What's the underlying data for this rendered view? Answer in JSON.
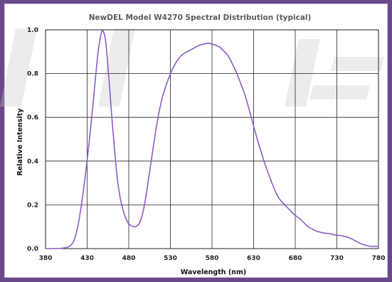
{
  "chart_data": {
    "type": "line",
    "title": "NewDEL Model W4270 Spectral Distribution (typical)",
    "xlabel": "Wavelength (nm)",
    "ylabel": "Relative Intensity",
    "xlim": [
      380,
      780
    ],
    "ylim": [
      0,
      1.0
    ],
    "grid": true,
    "x_ticks": [
      "380",
      "430",
      "480",
      "530",
      "580",
      "630",
      "680",
      "730",
      "780"
    ],
    "y_ticks": [
      "0.0",
      "0.2",
      "0.4",
      "0.6",
      "0.8",
      "1.0"
    ],
    "series": [
      {
        "color": "#8a5cc8",
        "x": [
          380,
          400,
          410,
          415,
          420,
          425,
          430,
          435,
          440,
          443,
          446,
          448,
          450,
          452,
          454,
          457,
          460,
          463,
          466,
          470,
          475,
          480,
          485,
          490,
          495,
          500,
          505,
          510,
          515,
          520,
          525,
          530,
          535,
          540,
          545,
          550,
          555,
          560,
          565,
          570,
          575,
          580,
          585,
          590,
          595,
          600,
          605,
          610,
          615,
          620,
          625,
          630,
          635,
          640,
          645,
          650,
          655,
          660,
          665,
          670,
          675,
          680,
          685,
          690,
          695,
          700,
          705,
          710,
          715,
          720,
          725,
          730,
          735,
          740,
          745,
          750,
          755,
          760,
          765,
          770,
          775,
          780
        ],
        "y": [
          0.0,
          0.0,
          0.01,
          0.04,
          0.12,
          0.25,
          0.4,
          0.58,
          0.78,
          0.9,
          0.97,
          1.0,
          0.99,
          0.96,
          0.88,
          0.74,
          0.58,
          0.45,
          0.32,
          0.22,
          0.15,
          0.11,
          0.1,
          0.1,
          0.13,
          0.22,
          0.35,
          0.48,
          0.6,
          0.69,
          0.75,
          0.8,
          0.84,
          0.87,
          0.89,
          0.9,
          0.91,
          0.92,
          0.93,
          0.935,
          0.94,
          0.935,
          0.93,
          0.92,
          0.9,
          0.88,
          0.84,
          0.8,
          0.75,
          0.7,
          0.63,
          0.56,
          0.49,
          0.43,
          0.37,
          0.32,
          0.27,
          0.23,
          0.21,
          0.19,
          0.17,
          0.15,
          0.14,
          0.12,
          0.1,
          0.09,
          0.08,
          0.075,
          0.07,
          0.07,
          0.065,
          0.06,
          0.06,
          0.055,
          0.05,
          0.04,
          0.03,
          0.02,
          0.015,
          0.01,
          0.01,
          0.01
        ]
      }
    ]
  }
}
